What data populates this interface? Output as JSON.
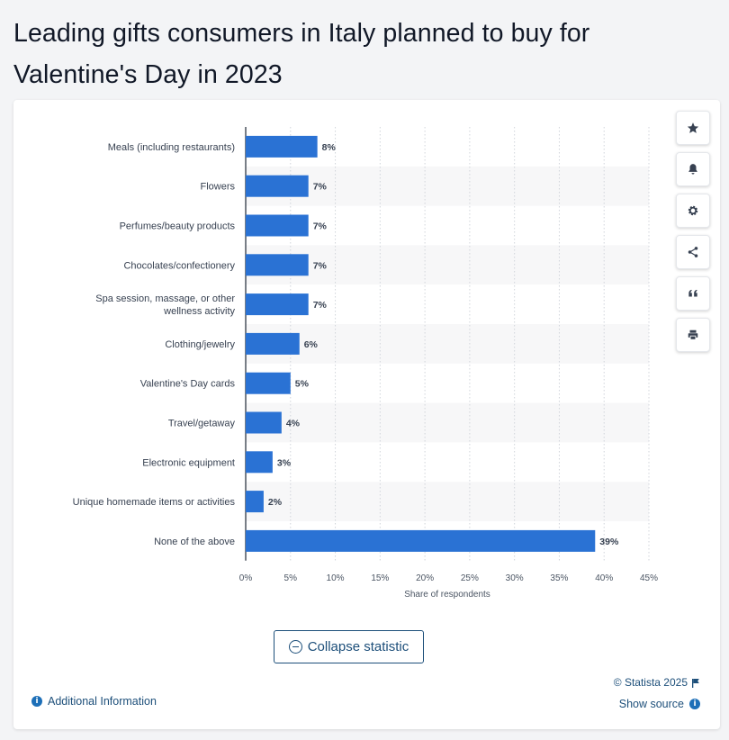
{
  "page": {
    "title": "Leading gifts consumers in Italy planned to buy for Valentine's Day in 2023"
  },
  "toolbar": {
    "items": [
      "star-icon",
      "bell-icon",
      "gear-icon",
      "share-icon",
      "quote-icon",
      "print-icon"
    ]
  },
  "footer": {
    "collapse_label": "Collapse statistic",
    "copyright": "© Statista 2025",
    "additional_info": "Additional Information",
    "show_source": "Show source"
  },
  "colors": {
    "bar": "#2a72d4",
    "link": "#1d4f7a",
    "stripe": "#f7f7f8"
  },
  "chart_data": {
    "type": "bar",
    "orientation": "horizontal",
    "categories": [
      "Meals (including restaurants)",
      "Flowers",
      "Perfumes/beauty products",
      "Chocolates/confectionery",
      "Spa session, massage, or other wellness activity",
      "Clothing/jewelry",
      "Valentine's Day cards",
      "Travel/getaway",
      "Electronic equipment",
      "Unique homemade items or activities",
      "None of the above"
    ],
    "values": [
      8,
      7,
      7,
      7,
      7,
      6,
      5,
      4,
      3,
      2,
      39
    ],
    "value_labels": [
      "8%",
      "7%",
      "7%",
      "7%",
      "7%",
      "6%",
      "5%",
      "4%",
      "3%",
      "2%",
      "39%"
    ],
    "xlabel": "Share of respondents",
    "xlim": [
      0,
      45
    ],
    "xticks": [
      0,
      5,
      10,
      15,
      20,
      25,
      30,
      35,
      40,
      45
    ],
    "xtick_labels": [
      "0%",
      "5%",
      "10%",
      "15%",
      "20%",
      "25%",
      "30%",
      "35%",
      "40%",
      "45%"
    ],
    "grid": true
  }
}
